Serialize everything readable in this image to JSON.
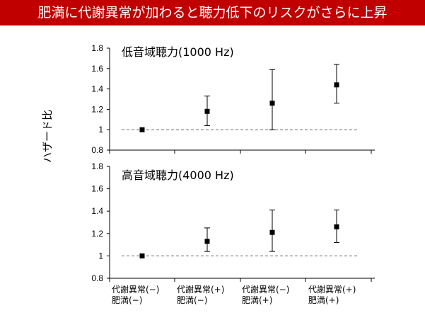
{
  "header": {
    "title": "肥満に代謝異常が加わると聴力低下のリスクがさらに上昇"
  },
  "chart_data": [
    {
      "type": "scatter",
      "title": "低音域聴力(1000 Hz)",
      "ylabel": "ハザード比",
      "ylim": [
        0.8,
        1.8
      ],
      "yticks": [
        "0.8",
        "1",
        "1.2",
        "1.4",
        "1.6",
        "1.8"
      ],
      "reference_line": 1,
      "categories": [
        "代謝異常(−) 肥満(−)",
        "代謝異常(+) 肥満(−)",
        "代謝異常(−) 肥満(+)",
        "代謝異常(+) 肥満(+)"
      ],
      "values": [
        1.0,
        1.18,
        1.26,
        1.44
      ],
      "ci_low": [
        1.0,
        1.04,
        1.0,
        1.26
      ],
      "ci_high": [
        1.0,
        1.33,
        1.59,
        1.64
      ]
    },
    {
      "type": "scatter",
      "title": "高音域聴力(4000 Hz)",
      "ylabel": "ハザード比",
      "ylim": [
        0.8,
        1.8
      ],
      "yticks": [
        "0.8",
        "1",
        "1.2",
        "1.4",
        "1.6",
        "1.8"
      ],
      "reference_line": 1,
      "categories": [
        "代謝異常(−) 肥満(−)",
        "代謝異常(+) 肥満(−)",
        "代謝異常(−) 肥満(+)",
        "代謝異常(+) 肥満(+)"
      ],
      "values": [
        1.0,
        1.13,
        1.21,
        1.26
      ],
      "ci_low": [
        1.0,
        1.04,
        1.04,
        1.12
      ],
      "ci_high": [
        1.0,
        1.25,
        1.41,
        1.41
      ]
    }
  ],
  "axis": {
    "ylabel": "ハザード比"
  },
  "panels": {
    "top_title": "低音域聴力(1000 Hz)",
    "bottom_title": "高音域聴力(4000 Hz)"
  },
  "categories": [
    {
      "line1": "代謝異常(−)",
      "line2": "肥満(−)"
    },
    {
      "line1": "代謝異常(+)",
      "line2": "肥満(−)"
    },
    {
      "line1": "代謝異常(−)",
      "line2": "肥満(+)"
    },
    {
      "line1": "代謝異常(+)",
      "line2": "肥満(+)"
    }
  ],
  "colors": {
    "header_bg": "#c00000",
    "header_text": "#ffffff",
    "marker": "#000000",
    "reference_line": "#666666"
  }
}
